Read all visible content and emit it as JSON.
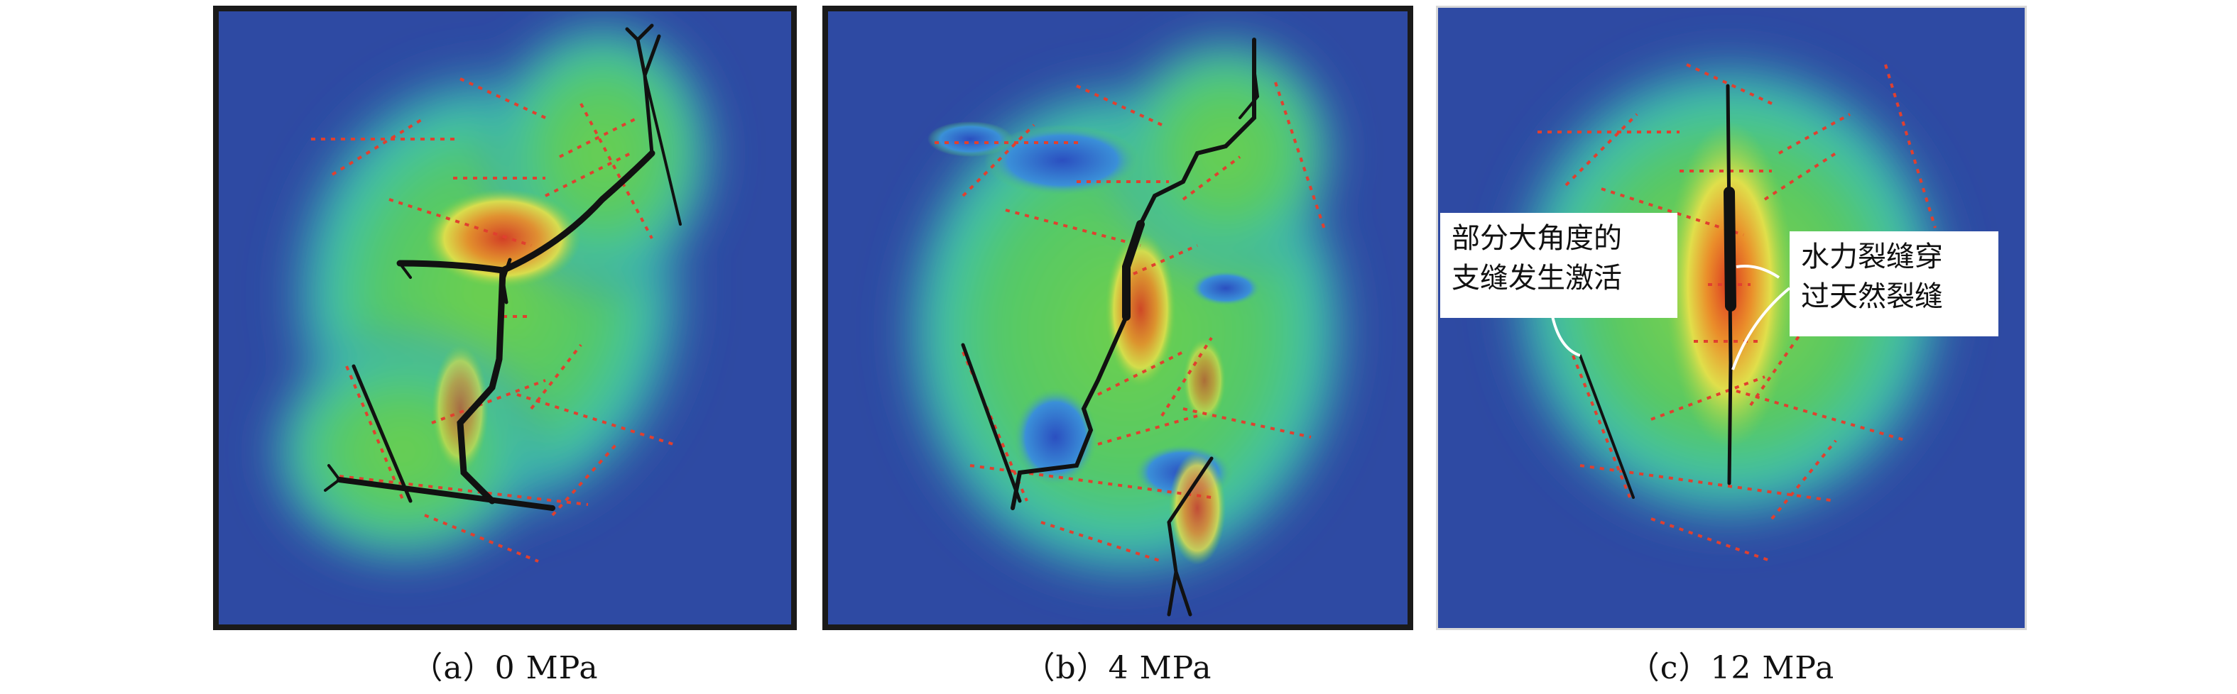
{
  "figure": {
    "panels": [
      {
        "caption": "（a）0 MPa"
      },
      {
        "caption": "（b）4 MPa"
      },
      {
        "caption": "（c）12 MPa"
      }
    ],
    "callouts": {
      "branch_activation": {
        "line1": "部分大角度的",
        "line2": "支缝发生激活"
      },
      "crossing": {
        "line1": "水力裂缝穿",
        "line2": "过天然裂缝"
      }
    },
    "colors": {
      "background_field": "#2e4aa3",
      "low": "#2f6fd1",
      "mid_cyan": "#38c6c0",
      "mid_green": "#5cc95a",
      "high_yellow": "#e6e04a",
      "peak_red": "#e0301e",
      "natural_fracture": "#e0402f",
      "hydraulic_fracture": "#111111",
      "frame": "#1a1a1a"
    }
  }
}
